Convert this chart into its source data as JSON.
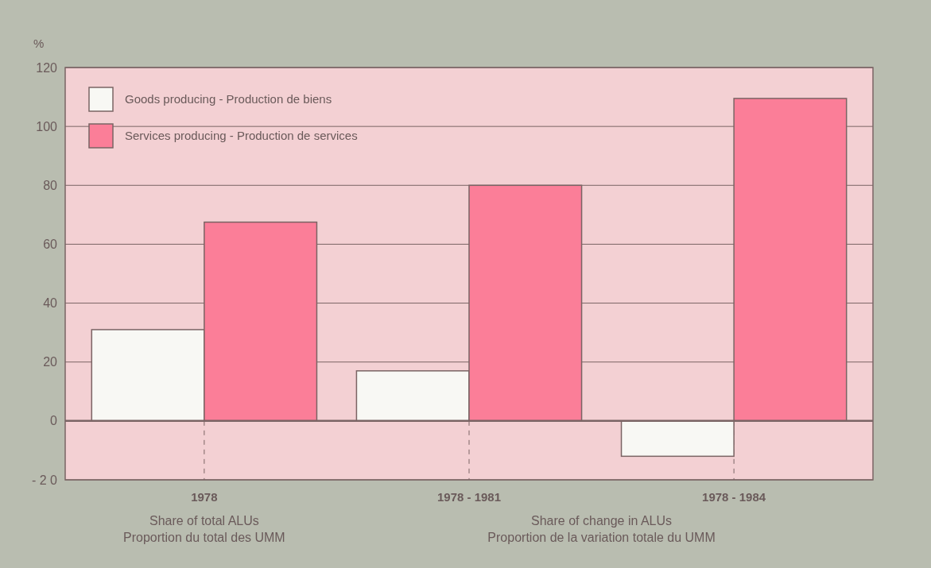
{
  "chart_data": {
    "type": "bar",
    "ylabel": "%",
    "categories": [
      "1978",
      "1978 - 1981",
      "1978 - 1984"
    ],
    "series": [
      {
        "name": "Goods producing - Production de biens",
        "color": "#f8f8f4",
        "values": [
          31,
          17,
          -12
        ]
      },
      {
        "name": "Services producing - Production de services",
        "color": "#fb7e98",
        "values": [
          67.5,
          80,
          109.5
        ]
      }
    ],
    "ylim": [
      -20,
      120
    ],
    "yticks": [
      {
        "value": -20,
        "label": "- 2 0"
      },
      0,
      20,
      40,
      60,
      80,
      100,
      120
    ],
    "grid": "y",
    "legend": "top left",
    "annotations": [
      "Share of total ALUs\nProportion du total des UMM",
      "Share of change in ALUs\nProportion de la variation totale du UMM"
    ]
  }
}
